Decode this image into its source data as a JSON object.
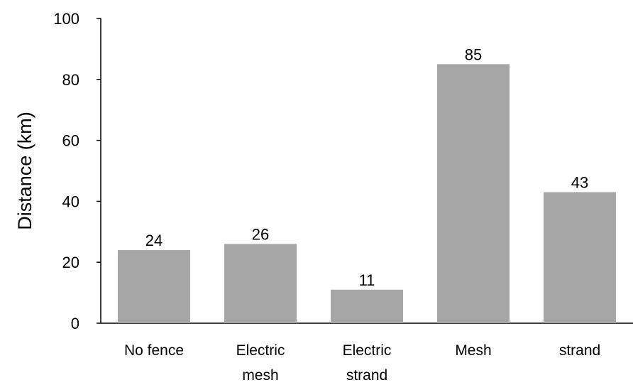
{
  "chart_data": {
    "type": "bar",
    "title": "",
    "xlabel": "",
    "ylabel": "Distance (km)",
    "ylim": [
      0,
      100
    ],
    "yticks": [
      0,
      20,
      40,
      60,
      80,
      100
    ],
    "grid": false,
    "legend": false,
    "categories": [
      [
        "No fence"
      ],
      [
        "Electric",
        "mesh"
      ],
      [
        "Electric",
        "strand"
      ],
      [
        "Mesh"
      ],
      [
        "strand"
      ]
    ],
    "values": [
      24,
      26,
      11,
      85,
      43
    ],
    "data_labels": [
      "24",
      "26",
      "11",
      "85",
      "43"
    ],
    "bar_color": "#a6a6a6"
  }
}
